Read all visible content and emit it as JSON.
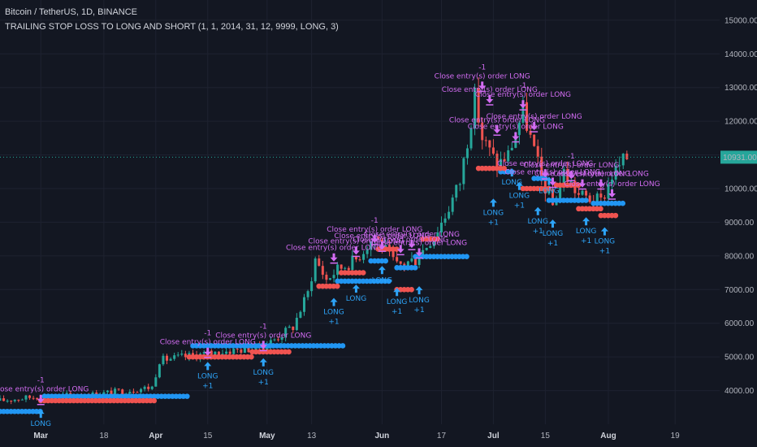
{
  "header": {
    "title": "Bitcoin / TetherUS, 1D, BINANCE",
    "study": "TRAILING STOP LOSS TO LONG AND SHORT (1, 1, 2014, 31, 12, 9999, LONG, 3)"
  },
  "colors": {
    "background": "#131722",
    "grid": "#1e2230",
    "up": "#26a69a",
    "down": "#ef5350",
    "stop_long": "#2196f3",
    "stop_short": "#ef5350",
    "entry": "#d36cf3",
    "long_arrow": "#2da4f8",
    "price_label": "#26a69a",
    "axis_text": "#b2b5be"
  },
  "chart_data": {
    "type": "candlestick",
    "symbol": "Bitcoin / TetherUS",
    "timeframe": "1D",
    "exchange": "BINANCE",
    "ylim": [
      3000,
      15600
    ],
    "y_ticks": [
      "4000.00",
      "5000.00",
      "6000.00",
      "7000.00",
      "8000.00",
      "9000.00",
      "10000.00",
      "11000.00",
      "12000.00",
      "13000.00",
      "14000.00",
      "15000.00"
    ],
    "last_price": "10931.00",
    "x_ticks": [
      "Mar",
      "18",
      "Apr",
      "15",
      "May",
      "13",
      "Jun",
      "17",
      "Jul",
      "15",
      "Aug",
      "19"
    ],
    "x_tick_dates": [
      "2019-03-01",
      "2019-03-18",
      "2019-04-01",
      "2019-04-15",
      "2019-05-01",
      "2019-05-13",
      "2019-06-01",
      "2019-06-17",
      "2019-07-01",
      "2019-07-15",
      "2019-08-01",
      "2019-08-19"
    ],
    "month_ticks": [
      "Mar",
      "Apr",
      "May",
      "Jun",
      "Jul",
      "Aug"
    ],
    "x_start": "2019-02-18",
    "x_end": "2019-08-31",
    "close_curve": [
      [
        "2019-02-18",
        3700
      ],
      [
        "2019-03-01",
        3830
      ],
      [
        "2019-03-15",
        3880
      ],
      [
        "2019-03-31",
        4100
      ],
      [
        "2019-04-02",
        4900
      ],
      [
        "2019-04-15",
        5100
      ],
      [
        "2019-04-30",
        5300
      ],
      [
        "2019-05-08",
        5900
      ],
      [
        "2019-05-12",
        6900
      ],
      [
        "2019-05-14",
        7900
      ],
      [
        "2019-05-17",
        7300
      ],
      [
        "2019-05-20",
        7600
      ],
      [
        "2019-05-25",
        7900
      ],
      [
        "2019-05-30",
        8600
      ],
      [
        "2019-06-05",
        7700
      ],
      [
        "2019-06-10",
        7900
      ],
      [
        "2019-06-15",
        8600
      ],
      [
        "2019-06-18",
        9200
      ],
      [
        "2019-06-22",
        10200
      ],
      [
        "2019-06-26",
        12700
      ],
      [
        "2019-06-28",
        11500
      ],
      [
        "2019-07-02",
        10700
      ],
      [
        "2019-07-05",
        11000
      ],
      [
        "2019-07-09",
        12300
      ],
      [
        "2019-07-14",
        10300
      ],
      [
        "2019-07-17",
        9500
      ],
      [
        "2019-07-20",
        10500
      ],
      [
        "2019-07-24",
        9800
      ],
      [
        "2019-07-30",
        9600
      ],
      [
        "2019-08-02",
        10400
      ],
      [
        "2019-08-06",
        10931
      ]
    ],
    "stop_lines": [
      {
        "from": "2019-02-18",
        "to": "2019-03-01",
        "value": 3380,
        "side": "long"
      },
      {
        "from": "2019-03-02",
        "to": "2019-04-10",
        "value": 3830,
        "side": "long"
      },
      {
        "from": "2019-04-11",
        "to": "2019-05-22",
        "value": 5330,
        "side": "long"
      },
      {
        "from": "2019-05-20",
        "to": "2019-06-03",
        "value": 7250,
        "side": "long"
      },
      {
        "from": "2019-05-29",
        "to": "2019-06-02",
        "value": 7850,
        "side": "long"
      },
      {
        "from": "2019-06-05",
        "to": "2019-06-10",
        "value": 7650,
        "side": "long"
      },
      {
        "from": "2019-06-10",
        "to": "2019-06-24",
        "value": 7980,
        "side": "long"
      },
      {
        "from": "2019-07-03",
        "to": "2019-07-06",
        "value": 10500,
        "side": "long"
      },
      {
        "from": "2019-07-12",
        "to": "2019-07-15",
        "value": 10300,
        "side": "long"
      },
      {
        "from": "2019-07-16",
        "to": "2019-07-24",
        "value": 9650,
        "side": "long"
      },
      {
        "from": "2019-07-24",
        "to": "2019-07-26",
        "value": 9650,
        "side": "long"
      },
      {
        "from": "2019-07-28",
        "to": "2019-08-05",
        "value": 9560,
        "side": "long"
      },
      {
        "from": "2019-03-01",
        "to": "2019-04-01",
        "value": 3700,
        "side": "short"
      },
      {
        "from": "2019-04-10",
        "to": "2019-04-27",
        "value": 5000,
        "side": "short"
      },
      {
        "from": "2019-04-27",
        "to": "2019-05-07",
        "value": 5150,
        "side": "short"
      },
      {
        "from": "2019-05-15",
        "to": "2019-05-20",
        "value": 7100,
        "side": "short"
      },
      {
        "from": "2019-05-21",
        "to": "2019-05-27",
        "value": 7500,
        "side": "short"
      },
      {
        "from": "2019-05-31",
        "to": "2019-06-05",
        "value": 8200,
        "side": "short"
      },
      {
        "from": "2019-06-05",
        "to": "2019-06-09",
        "value": 7000,
        "side": "short"
      },
      {
        "from": "2019-06-12",
        "to": "2019-06-16",
        "value": 8500,
        "side": "short"
      },
      {
        "from": "2019-06-27",
        "to": "2019-07-04",
        "value": 10600,
        "side": "short"
      },
      {
        "from": "2019-07-09",
        "to": "2019-07-16",
        "value": 10000,
        "side": "short"
      },
      {
        "from": "2019-07-18",
        "to": "2019-07-24",
        "value": 10100,
        "side": "short"
      },
      {
        "from": "2019-07-24",
        "to": "2019-07-30",
        "value": 9400,
        "side": "short"
      },
      {
        "from": "2019-07-30",
        "to": "2019-08-03",
        "value": 9200,
        "side": "short"
      }
    ],
    "annotations": [
      {
        "date": "2019-03-01",
        "kind": "close_long",
        "text": "Close entry(s) order LONG",
        "qty": "-1",
        "value": 3900
      },
      {
        "date": "2019-03-01",
        "kind": "long_entry",
        "text": "LONG",
        "value": 3430
      },
      {
        "date": "2019-04-15",
        "kind": "close_long",
        "text": "Close entry(s) order LONG",
        "qty": "-1",
        "value": 5300
      },
      {
        "date": "2019-04-15",
        "kind": "long_entry",
        "text": "LONG",
        "qty": "+1",
        "value": 4850
      },
      {
        "date": "2019-04-30",
        "kind": "close_long",
        "text": "Close entry(s) order LONG",
        "qty": "-1",
        "value": 5500
      },
      {
        "date": "2019-04-30",
        "kind": "long_entry",
        "text": "LONG",
        "qty": "+1",
        "value": 4960
      },
      {
        "date": "2019-05-19",
        "kind": "close_long",
        "text": "Close entry(s) order LONG",
        "value": 8100
      },
      {
        "date": "2019-05-19",
        "kind": "long_entry",
        "text": "LONG",
        "qty": "+1",
        "value": 6750
      },
      {
        "date": "2019-05-25",
        "kind": "close_long",
        "text": "Close entry(s) order LONG",
        "value": 8300
      },
      {
        "date": "2019-05-25",
        "kind": "long_entry",
        "text": "LONG",
        "value": 7150
      },
      {
        "date": "2019-05-30",
        "kind": "close_long",
        "text": "Close entry(s) order LONG",
        "qty": "-1",
        "value": 8650
      },
      {
        "date": "2019-06-01",
        "kind": "close_long",
        "text": "Close entry(s) order LONG",
        "value": 8450
      },
      {
        "date": "2019-06-01",
        "kind": "long_entry",
        "text": "LONG",
        "value": 7700
      },
      {
        "date": "2019-06-05",
        "kind": "long_entry",
        "text": "LONG",
        "qty": "+1",
        "value": 7050
      },
      {
        "date": "2019-06-06",
        "kind": "close_long",
        "text": "Close entry(s) order LONG",
        "value": 8350
      },
      {
        "date": "2019-06-09",
        "kind": "close_long",
        "text": "Close entry(s) order LONG",
        "value": 8500
      },
      {
        "date": "2019-06-11",
        "kind": "close_long",
        "text": "Close entry(s) order LONG",
        "value": 8250
      },
      {
        "date": "2019-06-11",
        "kind": "long_entry",
        "text": "LONG",
        "qty": "+1",
        "value": 7100
      },
      {
        "date": "2019-06-28",
        "kind": "close_long",
        "text": "Close entry(s) order LONG",
        "qty": "-1",
        "value": 13200
      },
      {
        "date": "2019-06-30",
        "kind": "close_long",
        "text": "Close entry(s) order LONG",
        "value": 12800
      },
      {
        "date": "2019-07-01",
        "kind": "long_entry",
        "text": "LONG",
        "qty": "+1",
        "value": 9700
      },
      {
        "date": "2019-07-02",
        "kind": "close_long",
        "text": "Close entry(s) order LONG",
        "value": 11900
      },
      {
        "date": "2019-07-06",
        "kind": "long_entry",
        "text": "LONG",
        "value": 10600
      },
      {
        "date": "2019-07-07",
        "kind": "close_long",
        "text": "Close entry(s) order LONG",
        "value": 11700
      },
      {
        "date": "2019-07-08",
        "kind": "long_entry",
        "text": "LONG",
        "qty": "+1",
        "value": 10200
      },
      {
        "date": "2019-07-09",
        "kind": "close_long",
        "text": "Close entry(s) order LONG",
        "qty": "-1",
        "value": 12650
      },
      {
        "date": "2019-07-12",
        "kind": "close_long",
        "text": "Close entry(s) order LONG",
        "value": 12000
      },
      {
        "date": "2019-07-13",
        "kind": "long_entry",
        "text": "LONG",
        "qty": "+1",
        "value": 9450
      },
      {
        "date": "2019-07-15",
        "kind": "close_long",
        "text": "Close entry(s) order LONG",
        "value": 10600
      },
      {
        "date": "2019-07-16",
        "kind": "long_entry",
        "text": "LONG",
        "value": 10350
      },
      {
        "date": "2019-07-17",
        "kind": "close_long",
        "text": "Close entry(s) order LONG",
        "value": 10350
      },
      {
        "date": "2019-07-17",
        "kind": "long_entry",
        "text": "LONG",
        "qty": "+1",
        "value": 9080
      },
      {
        "date": "2019-07-22",
        "kind": "close_long",
        "text": "Close entry(s) order LONG",
        "qty": "-1",
        "value": 10550
      },
      {
        "date": "2019-07-25",
        "kind": "close_long",
        "text": "Close entry(s) order LONG",
        "value": 10300
      },
      {
        "date": "2019-07-26",
        "kind": "long_entry",
        "text": "LONG",
        "qty": "+1",
        "value": 9150
      },
      {
        "date": "2019-07-30",
        "kind": "close_long",
        "text": "Close entry(s) order LONG",
        "value": 10300
      },
      {
        "date": "2019-07-31",
        "kind": "long_entry",
        "text": "LONG",
        "qty": "+1",
        "value": 8850
      },
      {
        "date": "2019-08-02",
        "kind": "close_long",
        "text": "Close entry(s) order LONG",
        "value": 10000
      }
    ]
  }
}
